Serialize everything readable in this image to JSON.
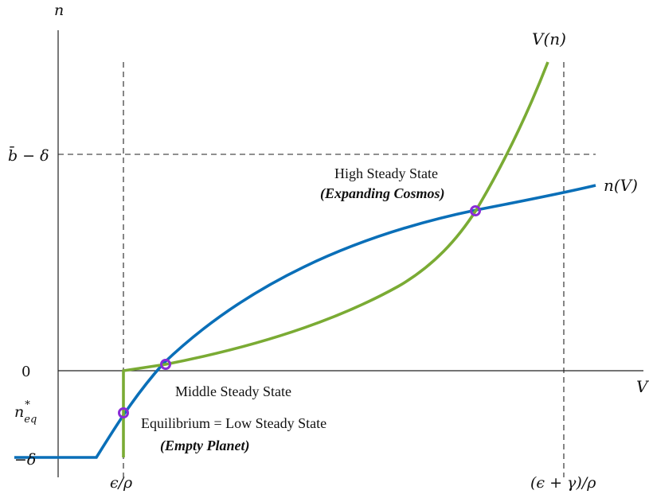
{
  "axes": {
    "y_axis_label": "n",
    "x_axis_label": "V"
  },
  "y_ticks": {
    "b_minus_delta": "b̄ − δ",
    "zero": "0",
    "n_eq": "n*eq",
    "minus_delta": "−δ"
  },
  "x_ticks": {
    "eps_over_rho": "ϵ/ρ",
    "eps_gamma_over_rho": "(ϵ + γ)/ρ"
  },
  "curves": {
    "v_of_n_label": "V(n)",
    "n_of_v_label": "n(V)",
    "v_of_n_color": "#7aab34",
    "n_of_v_color": "#0a6fb8"
  },
  "points": {
    "marker_color": "#8a2bd6",
    "high": {
      "title": "High Steady State",
      "subtitle": "(Expanding Cosmos)"
    },
    "middle": {
      "title": "Middle Steady State"
    },
    "low": {
      "title": "Equilibrium = Low Steady State",
      "subtitle": "(Empty Planet)"
    }
  }
}
